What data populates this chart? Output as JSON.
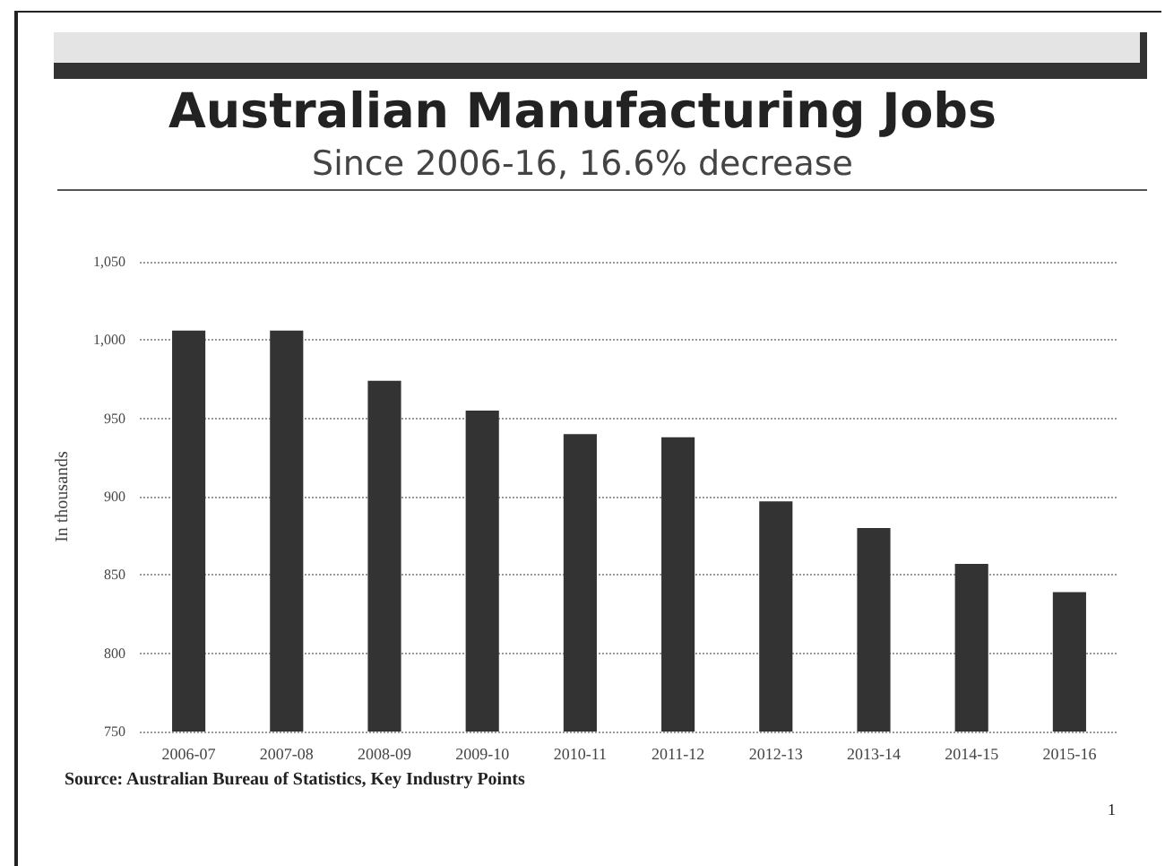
{
  "chart_data": {
    "type": "bar",
    "title": "Australian Manufacturing Jobs",
    "subtitle": "Since 2006-16, 16.6% decrease",
    "ylabel": "In thousands",
    "categories": [
      "2006-07",
      "2007-08",
      "2008-09",
      "2009-10",
      "2010-11",
      "2011-12",
      "2012-13",
      "2013-14",
      "2014-15",
      "2015-16"
    ],
    "values": [
      1006,
      1006,
      974,
      955,
      940,
      938,
      897,
      880,
      857,
      839
    ],
    "color": "#333333",
    "ylim": [
      750,
      1050
    ],
    "yticks": [
      750,
      800,
      850,
      900,
      950,
      {
        "value": 1000,
        "label": "1,000"
      },
      {
        "value": 1050,
        "label": "1,050"
      }
    ],
    "grid": "y",
    "annotations": [
      "Source: Australian Bureau of Statistics, Key Industry Points",
      "1"
    ]
  }
}
